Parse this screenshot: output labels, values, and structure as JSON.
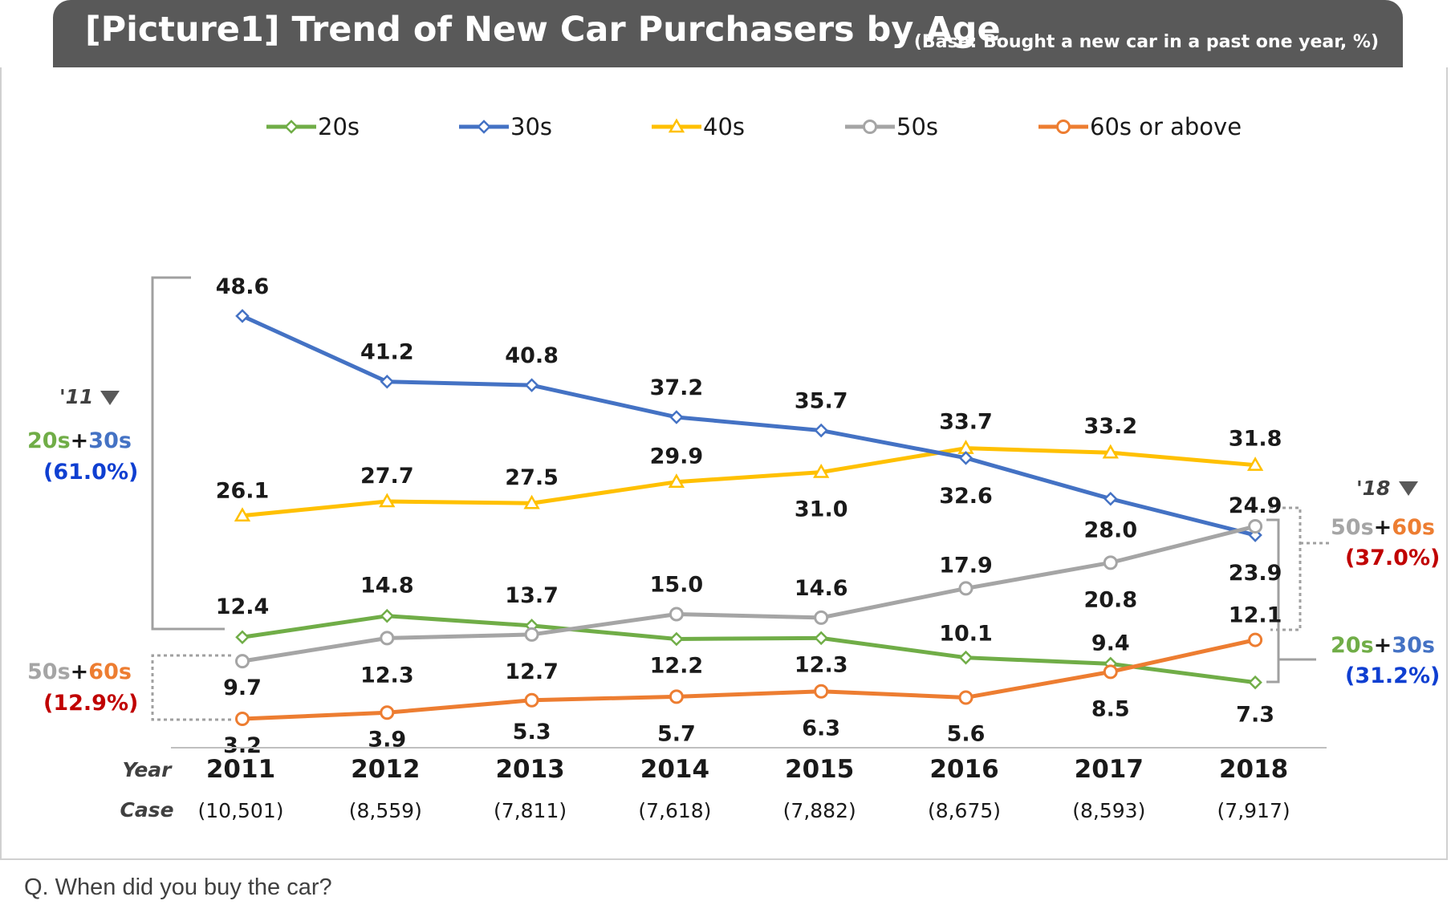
{
  "header": {
    "title": "[Picture1] Trend of New Car Purchasers by Age",
    "base_note": "(Base: Bought a new car in a past one year, %)"
  },
  "question": "Q. When did you buy the car?",
  "colors": {
    "20s": "#70ad47",
    "30s": "#4472c4",
    "40s": "#ffc000",
    "50s": "#a5a5a5",
    "60s": "#ed7d31",
    "header_bg": "#595959",
    "annotation_red": "#c00000",
    "annotation_blue": "#0f3fd1"
  },
  "chart_data": {
    "type": "line",
    "title": "Trend of New Car Purchasers by Age",
    "xlabel": "Year",
    "ylabel": "%",
    "categories": [
      "2011",
      "2012",
      "2013",
      "2014",
      "2015",
      "2016",
      "2017",
      "2018"
    ],
    "cases": [
      "(10,501)",
      "(8,559)",
      "(7,811)",
      "(7,618)",
      "(7,882)",
      "(8,675)",
      "(8,593)",
      "(7,917)"
    ],
    "row_labels": {
      "year": "Year",
      "case": "Case"
    },
    "ylim": [
      0,
      55
    ],
    "series": [
      {
        "name": "20s",
        "key": "20s",
        "marker": "diamond",
        "values": [
          12.4,
          14.8,
          13.7,
          12.2,
          12.3,
          10.1,
          9.4,
          7.3
        ]
      },
      {
        "name": "30s",
        "key": "30s",
        "marker": "diamond",
        "values": [
          48.6,
          41.2,
          40.8,
          37.2,
          35.7,
          32.6,
          28.0,
          23.9
        ]
      },
      {
        "name": "40s",
        "key": "40s",
        "marker": "triangle",
        "values": [
          26.1,
          27.7,
          27.5,
          29.9,
          31.0,
          33.7,
          33.2,
          31.8
        ]
      },
      {
        "name": "50s",
        "key": "50s",
        "marker": "circle",
        "values": [
          9.7,
          12.3,
          12.7,
          15.0,
          14.6,
          17.9,
          20.8,
          24.9
        ]
      },
      {
        "name": "60s or above",
        "key": "60s",
        "marker": "circle",
        "values": [
          3.2,
          3.9,
          5.3,
          5.7,
          6.3,
          5.6,
          8.5,
          12.1
        ]
      }
    ],
    "annotations": {
      "left": {
        "year_tag": "'11",
        "young": {
          "part1": "20s",
          "plus": "+",
          "part2": "30s",
          "value": "(61.0%)"
        },
        "old": {
          "part1": "50s",
          "plus": "+",
          "part2": "60s",
          "value": "(12.9%)"
        }
      },
      "right": {
        "year_tag": "'18",
        "old": {
          "part1": "50s",
          "plus": "+",
          "part2": "60s",
          "value": "(37.0%)"
        },
        "young": {
          "part1": "20s",
          "plus": "+",
          "part2": "30s",
          "value": "(31.2%)"
        }
      }
    }
  }
}
